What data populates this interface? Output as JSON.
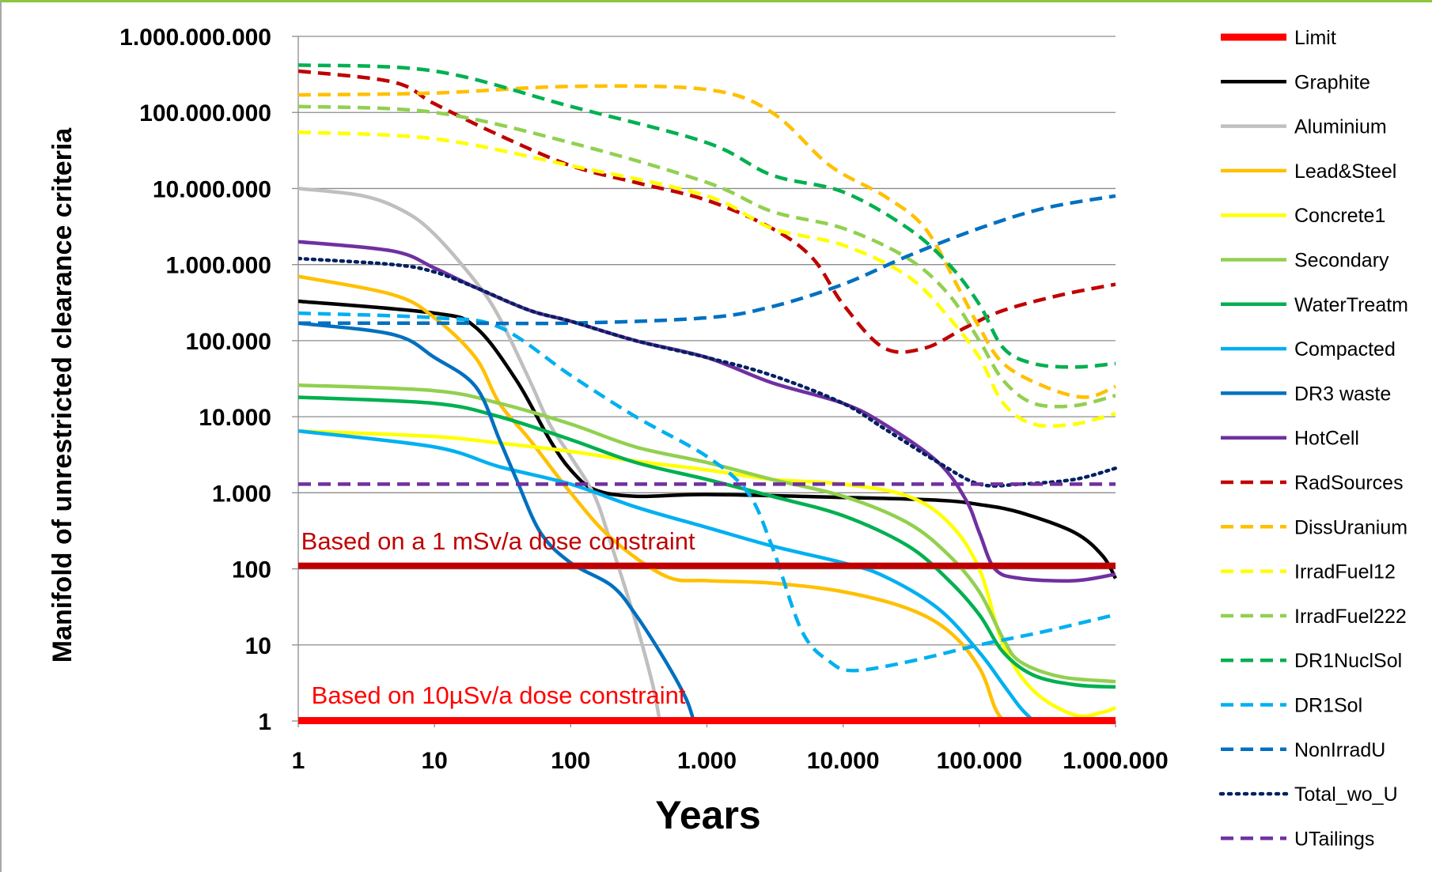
{
  "chart_data": {
    "type": "line",
    "xlabel": "Years",
    "ylabel": "Manifold of unrestricted clearance criteria",
    "x_scale": "log",
    "y_scale": "log",
    "xlim": [
      1,
      1000000
    ],
    "ylim": [
      1,
      1000000000
    ],
    "grid": "horizontal",
    "legend_position": "right",
    "x_ticks": [
      {
        "value": 1,
        "label": "1"
      },
      {
        "value": 10,
        "label": "10"
      },
      {
        "value": 100,
        "label": "100"
      },
      {
        "value": 1000,
        "label": "1.000"
      },
      {
        "value": 10000,
        "label": "10.000"
      },
      {
        "value": 100000,
        "label": "100.000"
      },
      {
        "value": 1000000,
        "label": "1.000.000"
      }
    ],
    "y_ticks": [
      {
        "value": 1,
        "label": "1"
      },
      {
        "value": 10,
        "label": "10"
      },
      {
        "value": 100,
        "label": "100"
      },
      {
        "value": 1000,
        "label": "1.000"
      },
      {
        "value": 10000,
        "label": "10.000"
      },
      {
        "value": 100000,
        "label": "100.000"
      },
      {
        "value": 1000000,
        "label": "1.000.000"
      },
      {
        "value": 10000000,
        "label": "10.000.000"
      },
      {
        "value": 100000000,
        "label": "100.000.000"
      },
      {
        "value": 1000000000,
        "label": "1.000.000.000"
      }
    ],
    "annotations": [
      {
        "text": "Based on a 1 mSv/a dose constraint",
        "x": 1.05,
        "y": 180,
        "color": "#c00000"
      },
      {
        "text": "Based on 10µSv/a dose constraint",
        "x": 1.25,
        "y": 1.7,
        "color": "#ff0000"
      }
    ],
    "series": [
      {
        "name": "Limit",
        "color": "#ff0000",
        "dash": "solid",
        "points": [
          [
            1,
            1
          ],
          [
            1000000,
            1
          ]
        ]
      },
      {
        "name": "Graphite",
        "color": "#000000",
        "dash": "solid",
        "points": [
          [
            1,
            330000
          ],
          [
            10,
            230000
          ],
          [
            20,
            150000
          ],
          [
            40,
            30000
          ],
          [
            70,
            5000
          ],
          [
            100,
            2000
          ],
          [
            150,
            1100
          ],
          [
            300,
            900
          ],
          [
            1000,
            950
          ],
          [
            10000,
            870
          ],
          [
            50000,
            800
          ],
          [
            100000,
            700
          ],
          [
            200000,
            550
          ],
          [
            500000,
            300
          ],
          [
            800000,
            150
          ],
          [
            1000000,
            75
          ]
        ]
      },
      {
        "name": "Aluminium",
        "color": "#bfbfbf",
        "dash": "solid",
        "points": [
          [
            1,
            10000000
          ],
          [
            3,
            8000000
          ],
          [
            6,
            5000000
          ],
          [
            10,
            2500000
          ],
          [
            20,
            600000
          ],
          [
            30,
            200000
          ],
          [
            50,
            30000
          ],
          [
            70,
            8000
          ],
          [
            100,
            3000
          ],
          [
            150,
            900
          ],
          [
            200,
            200
          ],
          [
            300,
            20
          ],
          [
            400,
            3
          ],
          [
            450,
            1
          ]
        ]
      },
      {
        "name": "Lead&Steel",
        "color": "#ffc000",
        "dash": "solid",
        "points": [
          [
            1,
            700000
          ],
          [
            5,
            400000
          ],
          [
            10,
            200000
          ],
          [
            20,
            60000
          ],
          [
            30,
            15000
          ],
          [
            50,
            5000
          ],
          [
            100,
            1000
          ],
          [
            200,
            250
          ],
          [
            500,
            80
          ],
          [
            1000,
            70
          ],
          [
            3000,
            65
          ],
          [
            10000,
            50
          ],
          [
            30000,
            30
          ],
          [
            60000,
            15
          ],
          [
            100000,
            5
          ],
          [
            130000,
            1.5
          ],
          [
            150000,
            1
          ]
        ]
      },
      {
        "name": "Concrete1",
        "color": "#ffff00",
        "dash": "solid",
        "points": [
          [
            1,
            6500
          ],
          [
            10,
            5500
          ],
          [
            30,
            4500
          ],
          [
            100,
            3500
          ],
          [
            300,
            2600
          ],
          [
            1000,
            2000
          ],
          [
            3000,
            1500
          ],
          [
            10000,
            1300
          ],
          [
            30000,
            900
          ],
          [
            60000,
            400
          ],
          [
            100000,
            100
          ],
          [
            150000,
            10
          ],
          [
            250000,
            2.5
          ],
          [
            500000,
            1.2
          ],
          [
            800000,
            1.3
          ],
          [
            1000000,
            1.5
          ]
        ]
      },
      {
        "name": "Secondary",
        "color": "#92d050",
        "dash": "solid",
        "points": [
          [
            1,
            26000
          ],
          [
            10,
            22000
          ],
          [
            30,
            15000
          ],
          [
            100,
            8000
          ],
          [
            300,
            4000
          ],
          [
            1000,
            2500
          ],
          [
            3000,
            1500
          ],
          [
            10000,
            900
          ],
          [
            30000,
            400
          ],
          [
            60000,
            150
          ],
          [
            100000,
            50
          ],
          [
            150000,
            12
          ],
          [
            200000,
            6
          ],
          [
            400000,
            3.8
          ],
          [
            1000000,
            3.3
          ]
        ]
      },
      {
        "name": "WaterTreatm",
        "color": "#00b050",
        "dash": "solid",
        "points": [
          [
            1,
            18000
          ],
          [
            10,
            15000
          ],
          [
            30,
            10000
          ],
          [
            100,
            5000
          ],
          [
            300,
            2500
          ],
          [
            1000,
            1500
          ],
          [
            3000,
            900
          ],
          [
            10000,
            500
          ],
          [
            30000,
            200
          ],
          [
            60000,
            70
          ],
          [
            100000,
            25
          ],
          [
            150000,
            8
          ],
          [
            250000,
            4
          ],
          [
            500000,
            3
          ],
          [
            1000000,
            2.8
          ]
        ]
      },
      {
        "name": "Compacted",
        "color": "#00b0f0",
        "dash": "solid",
        "points": [
          [
            1,
            6500
          ],
          [
            10,
            4000
          ],
          [
            30,
            2200
          ],
          [
            100,
            1300
          ],
          [
            300,
            650
          ],
          [
            1000,
            350
          ],
          [
            3000,
            200
          ],
          [
            10000,
            120
          ],
          [
            20000,
            80
          ],
          [
            50000,
            30
          ],
          [
            100000,
            8
          ],
          [
            150000,
            3
          ],
          [
            200000,
            1.5
          ],
          [
            250000,
            1
          ]
        ]
      },
      {
        "name": "DR3 waste",
        "color": "#0070c0",
        "dash": "solid",
        "points": [
          [
            1,
            170000
          ],
          [
            5,
            120000
          ],
          [
            10,
            60000
          ],
          [
            20,
            25000
          ],
          [
            30,
            5000
          ],
          [
            40,
            1500
          ],
          [
            60,
            300
          ],
          [
            100,
            120
          ],
          [
            200,
            60
          ],
          [
            300,
            25
          ],
          [
            500,
            6
          ],
          [
            700,
            2
          ],
          [
            800,
            1
          ]
        ]
      },
      {
        "name": "HotCell",
        "color": "#7030a0",
        "dash": "solid",
        "points": [
          [
            1,
            2000000
          ],
          [
            5,
            1500000
          ],
          [
            10,
            900000
          ],
          [
            20,
            500000
          ],
          [
            50,
            250000
          ],
          [
            100,
            180000
          ],
          [
            300,
            100000
          ],
          [
            1000,
            60000
          ],
          [
            3000,
            28000
          ],
          [
            10000,
            15000
          ],
          [
            20000,
            8000
          ],
          [
            50000,
            2500
          ],
          [
            80000,
            800
          ],
          [
            100000,
            300
          ],
          [
            130000,
            100
          ],
          [
            200000,
            75
          ],
          [
            500000,
            70
          ],
          [
            1000000,
            85
          ]
        ]
      },
      {
        "name": "RadSources",
        "color": "#c00000",
        "dash": "dash",
        "points": [
          [
            1,
            350000000
          ],
          [
            5,
            250000000
          ],
          [
            10,
            130000000
          ],
          [
            30,
            50000000
          ],
          [
            100,
            20000000
          ],
          [
            300,
            12000000
          ],
          [
            1000,
            7000000
          ],
          [
            3000,
            3000000
          ],
          [
            6000,
            1200000
          ],
          [
            10000,
            300000
          ],
          [
            20000,
            80000
          ],
          [
            40000,
            80000
          ],
          [
            80000,
            150000
          ],
          [
            150000,
            250000
          ],
          [
            400000,
            400000
          ],
          [
            1000000,
            550000
          ]
        ]
      },
      {
        "name": "DissUranium",
        "color": "#ffc000",
        "dash": "dash",
        "points": [
          [
            1,
            170000000
          ],
          [
            10,
            180000000
          ],
          [
            100,
            220000000
          ],
          [
            1000,
            200000000
          ],
          [
            3000,
            100000000
          ],
          [
            8000,
            20000000
          ],
          [
            20000,
            8000000
          ],
          [
            40000,
            3000000
          ],
          [
            70000,
            500000
          ],
          [
            100000,
            150000
          ],
          [
            150000,
            50000
          ],
          [
            300000,
            25000
          ],
          [
            600000,
            18000
          ],
          [
            1000000,
            25000
          ]
        ]
      },
      {
        "name": "IrradFuel12",
        "color": "#ffff00",
        "dash": "dash",
        "points": [
          [
            1,
            55000000
          ],
          [
            10,
            45000000
          ],
          [
            100,
            20000000
          ],
          [
            1000,
            8000000
          ],
          [
            3000,
            3000000
          ],
          [
            10000,
            1800000
          ],
          [
            30000,
            700000
          ],
          [
            60000,
            200000
          ],
          [
            100000,
            60000
          ],
          [
            150000,
            15000
          ],
          [
            250000,
            8000
          ],
          [
            500000,
            8000
          ],
          [
            1000000,
            11000
          ]
        ]
      },
      {
        "name": "IrradFuel222",
        "color": "#92d050",
        "dash": "dash",
        "points": [
          [
            1,
            120000000
          ],
          [
            10,
            100000000
          ],
          [
            100,
            40000000
          ],
          [
            1000,
            12000000
          ],
          [
            3000,
            5000000
          ],
          [
            10000,
            3000000
          ],
          [
            30000,
            1200000
          ],
          [
            60000,
            400000
          ],
          [
            100000,
            100000
          ],
          [
            150000,
            30000
          ],
          [
            250000,
            15000
          ],
          [
            500000,
            14000
          ],
          [
            1000000,
            19000
          ]
        ]
      },
      {
        "name": "DR1NuclSol",
        "color": "#00b050",
        "dash": "dash",
        "points": [
          [
            1,
            420000000
          ],
          [
            10,
            350000000
          ],
          [
            100,
            120000000
          ],
          [
            1000,
            40000000
          ],
          [
            3000,
            15000000
          ],
          [
            10000,
            9000000
          ],
          [
            30000,
            3000000
          ],
          [
            60000,
            1000000
          ],
          [
            100000,
            300000
          ],
          [
            150000,
            80000
          ],
          [
            250000,
            50000
          ],
          [
            500000,
            45000
          ],
          [
            1000000,
            50000
          ]
        ]
      },
      {
        "name": "DR1Sol",
        "color": "#00b0f0",
        "dash": "dash",
        "points": [
          [
            1,
            230000
          ],
          [
            10,
            200000
          ],
          [
            30,
            150000
          ],
          [
            100,
            35000
          ],
          [
            300,
            10000
          ],
          [
            1000,
            3000
          ],
          [
            2000,
            1000
          ],
          [
            3000,
            200
          ],
          [
            5000,
            15
          ],
          [
            8000,
            6
          ],
          [
            12000,
            4.6
          ],
          [
            30000,
            6
          ],
          [
            100000,
            10
          ],
          [
            300000,
            15
          ],
          [
            1000000,
            25
          ]
        ]
      },
      {
        "name": "NonIrradU",
        "color": "#0070c0",
        "dash": "dash",
        "points": [
          [
            1,
            170000
          ],
          [
            10,
            170000
          ],
          [
            100,
            170000
          ],
          [
            1000,
            200000
          ],
          [
            3000,
            280000
          ],
          [
            10000,
            550000
          ],
          [
            30000,
            1300000
          ],
          [
            100000,
            3000000
          ],
          [
            300000,
            5500000
          ],
          [
            1000000,
            8000000
          ]
        ]
      },
      {
        "name": "Total_wo_U",
        "color": "#002060",
        "dash": "dot",
        "points": [
          [
            1,
            1200000
          ],
          [
            5,
            1000000
          ],
          [
            10,
            800000
          ],
          [
            20,
            500000
          ],
          [
            50,
            250000
          ],
          [
            100,
            180000
          ],
          [
            300,
            100000
          ],
          [
            1000,
            60000
          ],
          [
            3000,
            35000
          ],
          [
            10000,
            15000
          ],
          [
            20000,
            7000
          ],
          [
            50000,
            2500
          ],
          [
            100000,
            1300
          ],
          [
            200000,
            1300
          ],
          [
            500000,
            1500
          ],
          [
            1000000,
            2100
          ]
        ]
      },
      {
        "name": "UTailings",
        "color": "#7030a0",
        "dash": "dash",
        "points": [
          [
            1,
            1300
          ],
          [
            1000000,
            1300
          ]
        ]
      }
    ]
  }
}
